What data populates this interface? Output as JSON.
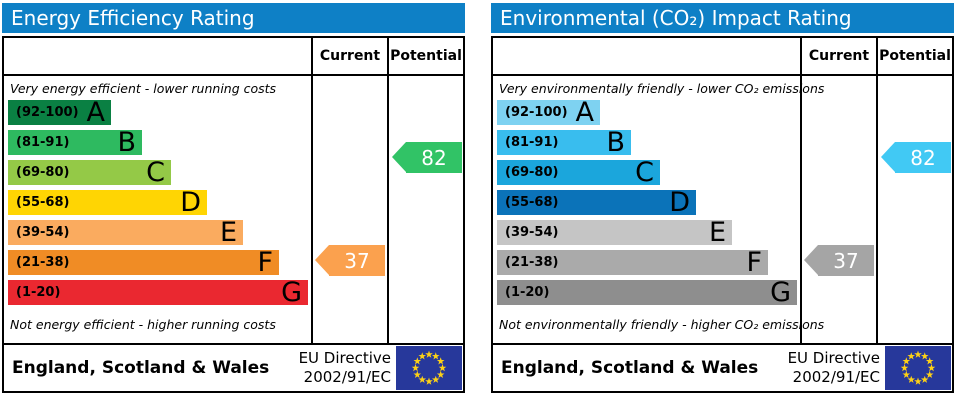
{
  "labels": {
    "current": "Current",
    "potential": "Potential"
  },
  "footer": {
    "region": "England, Scotland & Wales",
    "directive_line1": "EU Directive",
    "directive_line2": "2002/91/EC",
    "flag_blue": "#27389b",
    "flag_star_yellow": "#fdd116"
  },
  "panels": [
    {
      "title": "Energy Efficiency Rating",
      "title_bg": "#0e80c6",
      "top_caption": "Very energy efficient - lower running costs",
      "bottom_caption": "Not energy efficient - higher running costs",
      "bands": [
        {
          "range": "(92-100)",
          "letter": "A",
          "color": "#0a8043"
        },
        {
          "range": "(81-91)",
          "letter": "B",
          "color": "#2eba60"
        },
        {
          "range": "(69-80)",
          "letter": "C",
          "color": "#94c947"
        },
        {
          "range": "(55-68)",
          "letter": "D",
          "color": "#ffd503"
        },
        {
          "range": "(39-54)",
          "letter": "E",
          "color": "#faab5f"
        },
        {
          "range": "(21-38)",
          "letter": "F",
          "color": "#f08c25"
        },
        {
          "range": "(1-20)",
          "letter": "G",
          "color": "#ea2830"
        }
      ],
      "current": {
        "value": 37,
        "band": "F",
        "color": "#fba14e"
      },
      "potential": {
        "value": 82,
        "band": "B",
        "color": "#31c366"
      }
    },
    {
      "title": "Environmental (CO₂) Impact Rating",
      "title_bg": "#0e80c6",
      "top_caption": "Very environmentally friendly - lower CO₂ emissions",
      "bottom_caption": "Not environmentally friendly - higher CO₂ emissions",
      "bands": [
        {
          "range": "(92-100)",
          "letter": "A",
          "color": "#7ed2f1"
        },
        {
          "range": "(81-91)",
          "letter": "B",
          "color": "#39bdee"
        },
        {
          "range": "(69-80)",
          "letter": "C",
          "color": "#1ba6dc"
        },
        {
          "range": "(55-68)",
          "letter": "D",
          "color": "#0b73b9"
        },
        {
          "range": "(39-54)",
          "letter": "E",
          "color": "#c5c5c5"
        },
        {
          "range": "(21-38)",
          "letter": "F",
          "color": "#aaaaaa"
        },
        {
          "range": "(1-20)",
          "letter": "G",
          "color": "#8e8e8e"
        }
      ],
      "current": {
        "value": 37,
        "band": "F",
        "color": "#a5a5a5"
      },
      "potential": {
        "value": 82,
        "band": "B",
        "color": "#41c9f4"
      }
    }
  ],
  "chart_data": [
    {
      "type": "bar",
      "title": "Energy Efficiency Rating",
      "categories": [
        "A (92-100)",
        "B (81-91)",
        "C (69-80)",
        "D (55-68)",
        "E (39-54)",
        "F (21-38)",
        "G (1-20)"
      ],
      "series": [
        {
          "name": "Current",
          "value": 37,
          "band": "F"
        },
        {
          "name": "Potential",
          "value": 82,
          "band": "B"
        }
      ],
      "value_range": [
        1,
        100
      ],
      "annotations": [
        "Very energy efficient - lower running costs",
        "Not energy efficient - higher running costs",
        "England, Scotland & Wales",
        "EU Directive 2002/91/EC"
      ]
    },
    {
      "type": "bar",
      "title": "Environmental (CO₂) Impact Rating",
      "categories": [
        "A (92-100)",
        "B (81-91)",
        "C (69-80)",
        "D (55-68)",
        "E (39-54)",
        "F (21-38)",
        "G (1-20)"
      ],
      "series": [
        {
          "name": "Current",
          "value": 37,
          "band": "F"
        },
        {
          "name": "Potential",
          "value": 82,
          "band": "B"
        }
      ],
      "value_range": [
        1,
        100
      ],
      "annotations": [
        "Very environmentally friendly - lower CO₂ emissions",
        "Not environmentally friendly - higher CO₂ emissions",
        "England, Scotland & Wales",
        "EU Directive 2002/91/EC"
      ]
    }
  ]
}
